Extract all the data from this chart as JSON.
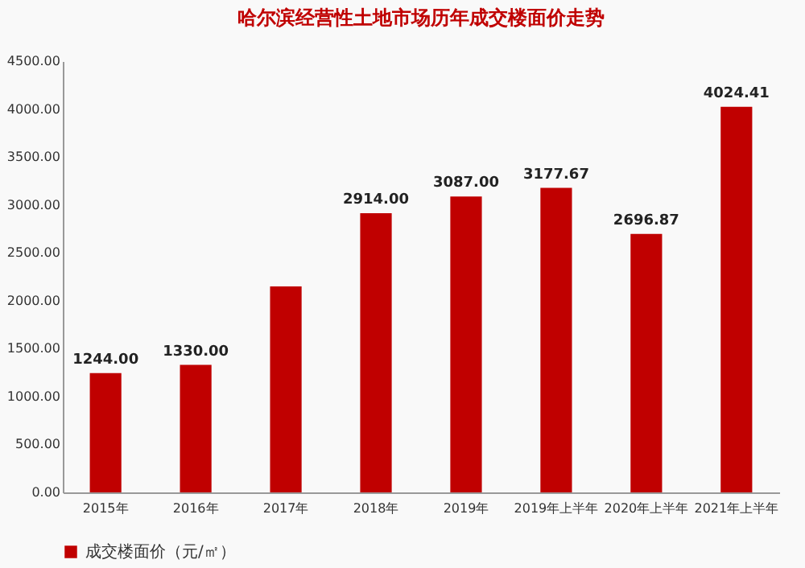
{
  "chart_data": {
    "type": "bar",
    "title": "哈尔滨经营性土地市场历年成交楼面价走势",
    "categories": [
      "2015年",
      "2016年",
      "2017年",
      "2018年",
      "2019年",
      "2019年上半年",
      "2020年上半年",
      "2021年上半年"
    ],
    "series": [
      {
        "name": "成交楼面价（元/㎡）",
        "color": "#c00000",
        "values": [
          1244,
          1330,
          2150,
          2914,
          3087,
          3177.67,
          2696.87,
          4024.41
        ]
      }
    ],
    "value_labels": [
      "1244.00",
      "1330.00",
      null,
      "2914.00",
      "3087.00",
      "3177.67",
      "2696.87",
      "4024.41"
    ],
    "ylim": [
      0,
      4500
    ],
    "yticks": [
      {
        "value": 0,
        "label": "0.00"
      },
      {
        "value": 500,
        "label": "500.00"
      },
      {
        "value": 1000,
        "label": "1000.00"
      },
      {
        "value": 1500,
        "label": "1500.00"
      },
      {
        "value": 2000,
        "label": "2000.00"
      },
      {
        "value": 2500,
        "label": "2500.00"
      },
      {
        "value": 3000,
        "label": "3000.00"
      },
      {
        "value": 3500,
        "label": "3500.00"
      },
      {
        "value": 4000,
        "label": "4000.00"
      },
      {
        "value": 4500,
        "label": "4500.00"
      }
    ],
    "legend": "bottom"
  }
}
